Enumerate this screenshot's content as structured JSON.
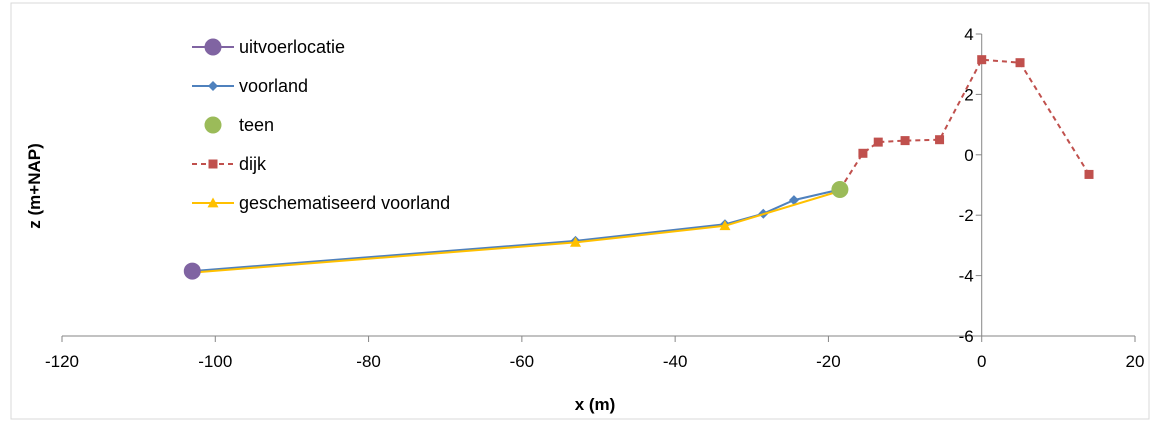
{
  "chart_data": {
    "type": "line",
    "title": "",
    "xlabel": "x (m)",
    "ylabel": "z (m+NAP)",
    "xlim": [
      -120,
      20
    ],
    "ylim": [
      -6,
      4
    ],
    "xticks": [
      -120,
      -100,
      -80,
      -60,
      -40,
      -20,
      0,
      20
    ],
    "yticks": [
      -6,
      -4,
      -2,
      0,
      2,
      4
    ],
    "grid": false,
    "legend_position": "top-left",
    "series": [
      {
        "name": "uitvoerlocatie",
        "color": "#8064a2",
        "marker": "circle",
        "line": "solid",
        "points": [
          [
            -103,
            -3.85
          ]
        ]
      },
      {
        "name": "voorland",
        "color": "#4f81bd",
        "marker": "diamond",
        "line": "solid",
        "points": [
          [
            -103,
            -3.85
          ],
          [
            -53,
            -2.85
          ],
          [
            -33.5,
            -2.3
          ],
          [
            -28.5,
            -1.95
          ],
          [
            -24.5,
            -1.5
          ],
          [
            -18.5,
            -1.15
          ]
        ]
      },
      {
        "name": "teen",
        "color": "#9bbb59",
        "marker": "circle",
        "line": "none",
        "points": [
          [
            -18.5,
            -1.15
          ]
        ]
      },
      {
        "name": "dijk",
        "color": "#c0504d",
        "marker": "square",
        "line": "dashed",
        "points": [
          [
            -18.5,
            -1.15
          ],
          [
            -15.5,
            0.05
          ],
          [
            -13.5,
            0.42
          ],
          [
            -10,
            0.47
          ],
          [
            -5.5,
            0.5
          ],
          [
            0,
            3.15
          ],
          [
            5,
            3.05
          ],
          [
            14,
            -0.65
          ]
        ]
      },
      {
        "name": "geschematiseerd voorland",
        "color": "#ffc000",
        "marker": "triangle",
        "line": "solid",
        "points": [
          [
            -103,
            -3.9
          ],
          [
            -53,
            -2.9
          ],
          [
            -33.5,
            -2.35
          ],
          [
            -18.5,
            -1.2
          ]
        ]
      }
    ]
  }
}
